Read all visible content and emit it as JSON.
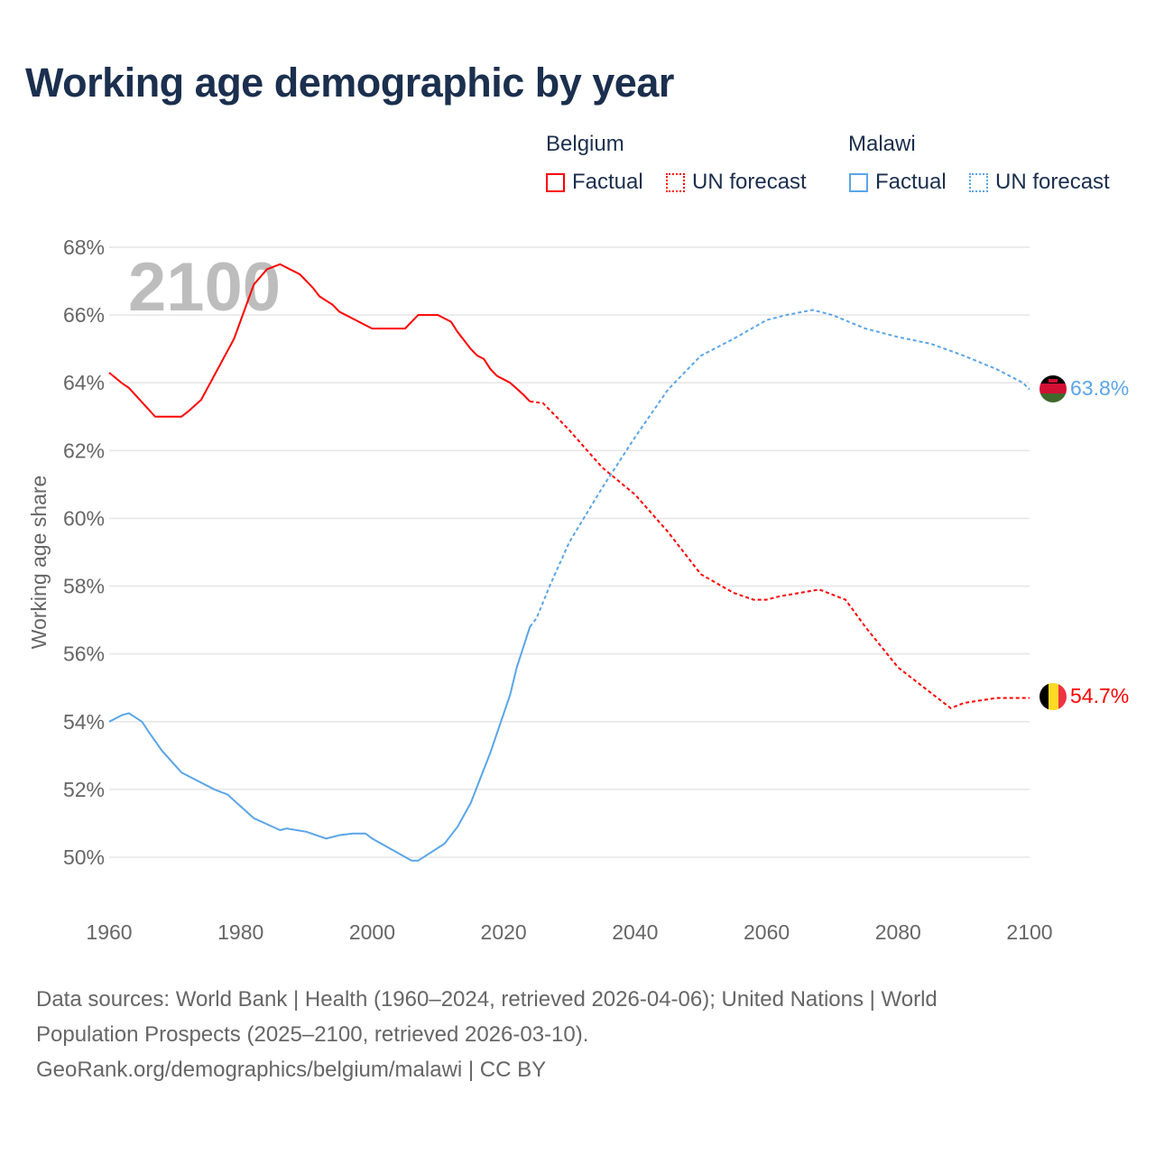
{
  "title": "Working age demographic by year",
  "legend": {
    "groups": [
      {
        "name": "Belgium",
        "color": "#ff0000",
        "factual_label": "Factual",
        "forecast_label": "UN forecast"
      },
      {
        "name": "Malawi",
        "color": "#5aa5e8",
        "factual_label": "Factual",
        "forecast_label": "UN forecast"
      }
    ]
  },
  "year_watermark": "2100",
  "end_labels": {
    "belgium": "54.7%",
    "malawi": "63.8%"
  },
  "sources": {
    "line1": "Data sources: World Bank | Health (1960–2024, retrieved 2026-04-06); United Nations | World",
    "line2": "Population Prospects (2025–2100, retrieved 2026-03-10).",
    "line3": "GeoRank.org/demographics/belgium/malawi | CC BY"
  },
  "chart_data": {
    "type": "line",
    "title": "Working age demographic by year",
    "xlabel": "",
    "ylabel": "Working age share",
    "xlim": [
      1960,
      2100
    ],
    "ylim": [
      49,
      68
    ],
    "x_ticks": [
      "1960",
      "1980",
      "2000",
      "2020",
      "2040",
      "2060",
      "2080",
      "2100"
    ],
    "y_ticks": [
      "50%",
      "52%",
      "54%",
      "56%",
      "58%",
      "60%",
      "62%",
      "64%",
      "66%",
      "68%"
    ],
    "grid": true,
    "forecast_start": 2024,
    "series": [
      {
        "name": "Belgium",
        "color": "#ff0000",
        "points": [
          [
            1960,
            64.3
          ],
          [
            1962,
            63.98
          ],
          [
            1963,
            63.85
          ],
          [
            1967,
            63.0
          ],
          [
            1971,
            63.0
          ],
          [
            1972,
            63.15
          ],
          [
            1974,
            63.5
          ],
          [
            1979,
            65.3
          ],
          [
            1982,
            66.9
          ],
          [
            1984,
            67.35
          ],
          [
            1986,
            67.5
          ],
          [
            1989,
            67.2
          ],
          [
            1991,
            66.8
          ],
          [
            1992,
            66.55
          ],
          [
            1994,
            66.3
          ],
          [
            1995,
            66.1
          ],
          [
            2000,
            65.6
          ],
          [
            2005,
            65.6
          ],
          [
            2007,
            66.0
          ],
          [
            2010,
            66.0
          ],
          [
            2012,
            65.8
          ],
          [
            2013,
            65.5
          ],
          [
            2015,
            65.0
          ],
          [
            2016,
            64.8
          ],
          [
            2017,
            64.7
          ],
          [
            2018,
            64.4
          ],
          [
            2019,
            64.2
          ],
          [
            2021,
            64.0
          ],
          [
            2023,
            63.65
          ],
          [
            2024,
            63.45
          ],
          [
            2026,
            63.4
          ],
          [
            2030,
            62.6
          ],
          [
            2035,
            61.5
          ],
          [
            2040,
            60.7
          ],
          [
            2045,
            59.6
          ],
          [
            2050,
            58.35
          ],
          [
            2055,
            57.8
          ],
          [
            2058,
            57.6
          ],
          [
            2060,
            57.6
          ],
          [
            2062,
            57.7
          ],
          [
            2065,
            57.8
          ],
          [
            2068,
            57.9
          ],
          [
            2072,
            57.6
          ],
          [
            2075,
            56.8
          ],
          [
            2080,
            55.6
          ],
          [
            2085,
            54.85
          ],
          [
            2088,
            54.4
          ],
          [
            2090,
            54.55
          ],
          [
            2095,
            54.7
          ],
          [
            2100,
            54.7
          ]
        ]
      },
      {
        "name": "Malawi",
        "color": "#5aa5e8",
        "points": [
          [
            1960,
            54.0
          ],
          [
            1962,
            54.2
          ],
          [
            1963,
            54.25
          ],
          [
            1965,
            54.0
          ],
          [
            1966,
            53.7
          ],
          [
            1968,
            53.15
          ],
          [
            1971,
            52.5
          ],
          [
            1976,
            52.0
          ],
          [
            1978,
            51.85
          ],
          [
            1982,
            51.15
          ],
          [
            1986,
            50.8
          ],
          [
            1987,
            50.85
          ],
          [
            1990,
            50.75
          ],
          [
            1993,
            50.55
          ],
          [
            1995,
            50.65
          ],
          [
            1997,
            50.7
          ],
          [
            1999,
            50.7
          ],
          [
            2000,
            50.55
          ],
          [
            2006,
            49.9
          ],
          [
            2007,
            49.9
          ],
          [
            2011,
            50.4
          ],
          [
            2013,
            50.9
          ],
          [
            2015,
            51.6
          ],
          [
            2018,
            53.1
          ],
          [
            2021,
            54.8
          ],
          [
            2022,
            55.6
          ],
          [
            2024,
            56.8
          ],
          [
            2025,
            57.05
          ],
          [
            2027,
            58.0
          ],
          [
            2030,
            59.3
          ],
          [
            2035,
            60.9
          ],
          [
            2040,
            62.4
          ],
          [
            2045,
            63.8
          ],
          [
            2050,
            64.8
          ],
          [
            2055,
            65.3
          ],
          [
            2060,
            65.85
          ],
          [
            2063,
            66.0
          ],
          [
            2067,
            66.15
          ],
          [
            2070,
            66.0
          ],
          [
            2075,
            65.6
          ],
          [
            2080,
            65.35
          ],
          [
            2085,
            65.15
          ],
          [
            2090,
            64.8
          ],
          [
            2095,
            64.4
          ],
          [
            2099,
            64.0
          ],
          [
            2100,
            63.8
          ]
        ]
      }
    ]
  }
}
